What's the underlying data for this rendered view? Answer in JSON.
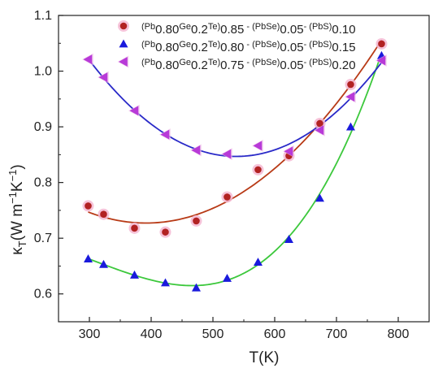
{
  "chart_data": {
    "type": "scatter",
    "title": "",
    "xlabel": "T(K)",
    "ylabel": "κT(W m−1K−1)",
    "ylabel_parts": {
      "kappa": "κ",
      "kappa_sub": "T",
      "unit_open": "(W m",
      "m_exp": "−1",
      "k_letter": "K",
      "k_exp": "−1",
      "unit_close": ")"
    },
    "xlim": [
      250,
      850
    ],
    "ylim": [
      0.55,
      1.1
    ],
    "x_ticks": [
      300,
      400,
      500,
      600,
      700,
      800
    ],
    "y_ticks": [
      0.6,
      0.7,
      0.8,
      0.9,
      1.0,
      1.1
    ],
    "x_tick_labels": [
      "300",
      "400",
      "500",
      "600",
      "700",
      "800"
    ],
    "y_tick_labels": [
      "0.6",
      "0.7",
      "0.8",
      "0.9",
      "1.0",
      "1.1"
    ],
    "legend_position": "top-left",
    "series": [
      {
        "name": "(Pb0.80Ge0.2Te)0.85 - (PbSe)0.05- (PbS)0.10",
        "name_parts": [
          "(Pb",
          "0.80",
          "Ge",
          "0.2",
          "Te)",
          "0.85",
          " - (PbSe)",
          "0.05",
          "- (PbS)",
          "0.10"
        ],
        "marker": "circle",
        "marker_color": "#b22222",
        "fit_color": "#b83a16",
        "x": [
          298,
          323,
          373,
          423,
          473,
          523,
          573,
          623,
          673,
          723,
          773
        ],
        "y": [
          0.758,
          0.743,
          0.718,
          0.711,
          0.731,
          0.774,
          0.823,
          0.848,
          0.906,
          0.976,
          1.049
        ]
      },
      {
        "name": "(Pb0.80Ge0.2Te)0.80 - (PbSe)0.05- (PbS)0.15",
        "name_parts": [
          "(Pb",
          "0.80",
          "Ge",
          "0.2",
          "Te)",
          "0.80",
          " - (PbSe)",
          "0.05",
          "- (PbS)",
          "0.15"
        ],
        "marker": "triangle-up",
        "marker_color": "#1a1adc",
        "fit_color": "#3cc83c",
        "x": [
          298,
          323,
          373,
          423,
          473,
          523,
          573,
          623,
          673,
          723,
          773
        ],
        "y": [
          0.663,
          0.653,
          0.634,
          0.62,
          0.611,
          0.628,
          0.657,
          0.698,
          0.772,
          0.9,
          1.028
        ]
      },
      {
        "name": "(Pb0.80Ge0.2Te)0.75 - (PbSe)0.05- (PbS)0.20",
        "name_parts": [
          "(Pb",
          "0.80",
          "Ge",
          "0.2",
          "Te)",
          "0.75",
          " - (PbSe)",
          "0.05",
          "- (PbS)",
          "0.20"
        ],
        "marker": "triangle-left",
        "marker_color": "#b83ad8",
        "fit_color": "#2a2ac8",
        "x": [
          298,
          323,
          373,
          423,
          473,
          523,
          573,
          623,
          673,
          723,
          773
        ],
        "y": [
          1.021,
          0.989,
          0.929,
          0.886,
          0.858,
          0.851,
          0.866,
          0.856,
          0.894,
          0.954,
          1.019
        ]
      }
    ]
  }
}
